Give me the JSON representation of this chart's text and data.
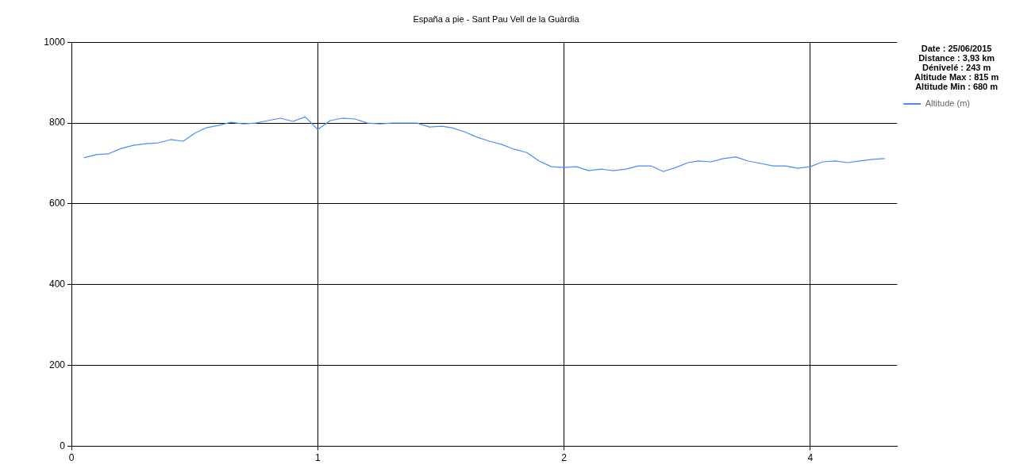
{
  "chart_data": {
    "type": "line",
    "title": "España a pie - Sant Pau Vell de la Guàrdia",
    "annotations": [
      "Date : 25/06/2015",
      "Distance : 3,93 km",
      "Dénivelé : 243 m",
      "Altitude Max : 815 m",
      "Altitude Min : 680 m"
    ],
    "x": [
      0.06,
      0.12,
      0.18,
      0.24,
      0.3,
      0.36,
      0.42,
      0.48,
      0.54,
      0.6,
      0.65,
      0.71,
      0.77,
      0.83,
      0.89,
      0.95,
      1.01,
      1.07,
      1.13,
      1.19,
      1.25,
      1.31,
      1.37,
      1.43,
      1.49,
      1.55,
      1.61,
      1.67,
      1.73,
      1.79,
      1.84,
      1.9,
      1.96,
      2.02,
      2.08,
      2.14,
      2.2,
      2.26,
      2.32,
      2.38,
      2.44,
      2.5,
      2.56,
      2.62,
      2.68,
      2.74,
      2.8,
      2.86,
      2.92,
      2.98,
      3.03,
      3.09,
      3.15,
      3.21,
      3.27,
      3.33,
      3.39,
      3.45,
      3.51,
      3.57,
      3.63,
      3.69,
      3.75,
      3.81,
      3.87,
      3.93
    ],
    "series": [
      {
        "name": "Altitude (m)",
        "color": "#4b8df8",
        "values": [
          714,
          722,
          724,
          737,
          745,
          749,
          751,
          759,
          755,
          776,
          788,
          794,
          802,
          798,
          800,
          806,
          812,
          804,
          815,
          784,
          806,
          812,
          810,
          800,
          798,
          800,
          800,
          800,
          790,
          792,
          788,
          778,
          765,
          755,
          747,
          735,
          727,
          706,
          692,
          690,
          692,
          682,
          686,
          682,
          686,
          694,
          694,
          680,
          690,
          702,
          706,
          704,
          712,
          716,
          706,
          700,
          694,
          694,
          688,
          692,
          704,
          706,
          702,
          706,
          710,
          712
        ]
      }
    ],
    "xlim": [
      0,
      3.99
    ],
    "xticks": [
      0,
      {
        "value": 1.19,
        "label": "1"
      },
      {
        "value": 2.38,
        "label": "2"
      },
      {
        "value": 3.57,
        "label": "4"
      }
    ],
    "ylim": [
      0,
      1000
    ],
    "yticks": [
      0,
      200,
      400,
      600,
      800,
      1000
    ],
    "grid": true,
    "legend": "top right",
    "marker": "none",
    "line_style": "solid"
  }
}
